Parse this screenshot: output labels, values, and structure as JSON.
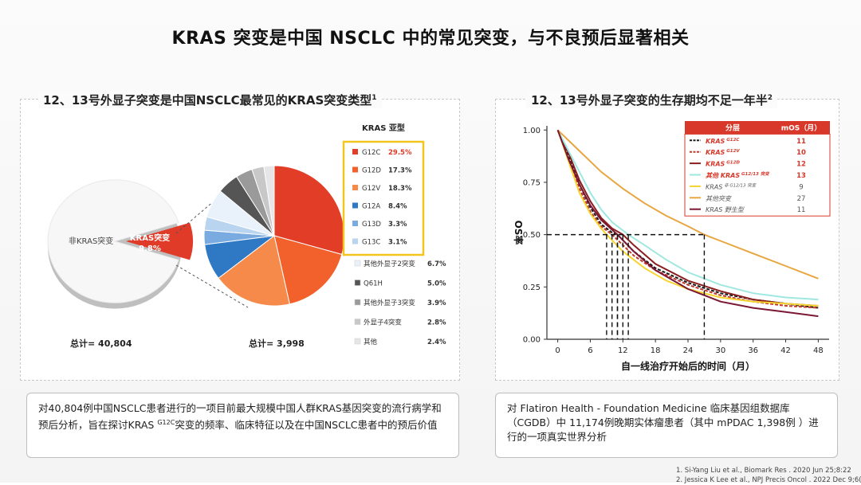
{
  "slide_title": "KRAS 突变是中国 NSCLC 中的常见突变，与不良预后显著相关",
  "left_panel": {
    "title": "12、13号外显子突变是中国NSCLC最常见的KRAS突变类型",
    "title_sup": "1",
    "note_pre": "对40,804例中国NSCLC患者进行的一项目前最大规模中国人群KRAS基因突变的流行病学和预后分析，旨在探讨KRAS ",
    "note_sup": "G12C",
    "note_post": "突变的频率、临床特征以及在中国NSCLC患者中的预后价值"
  },
  "right_panel": {
    "title": "12、13号外显子突变的生存期均不足一年半",
    "title_sup": "2",
    "note": "对 Flatiron Health - Foundation Medicine 临床基因组数据库（CGDB）中 11,174例晚期实体瘤患者（其中 mPDAC 1,398例 ）进行的一项真实世界分析"
  },
  "references": [
    "1.    Si-Yang Liu et al., Biomark Res . 2020 Jun 25;8:22",
    "2.    Jessica K Lee et al., NPJ Precis Oncol . 2022 Dec 9;6(1):91"
  ],
  "chart_data": [
    {
      "type": "pie",
      "categories": [
        "非KRAS突变",
        "KRAS突变"
      ],
      "values": [
        90.2,
        9.8
      ],
      "labels": [
        "非KRAS突变",
        "KRAS突变\n9.8%"
      ],
      "total_label": "总计= 40,804",
      "colors": [
        "#f7f7f7",
        "#e03a28"
      ]
    },
    {
      "type": "pie",
      "title": "KRAS 亚型",
      "total_label": "总计= 3,998",
      "slices": [
        {
          "name": "G12C",
          "value": 29.5,
          "label": "29.5%",
          "color": "#e23d27",
          "group": "highlight"
        },
        {
          "name": "G12D",
          "value": 17.3,
          "label": "17.3%",
          "color": "#f2602b",
          "group": "highlight"
        },
        {
          "name": "G12V",
          "value": 18.3,
          "label": "18.3%",
          "color": "#f58a4b",
          "group": "highlight"
        },
        {
          "name": "G12A",
          "value": 8.4,
          "label": "8.4%",
          "color": "#2e78c4",
          "group": "highlight"
        },
        {
          "name": "G13D",
          "value": 3.3,
          "label": "3.3%",
          "color": "#79abe0",
          "group": "highlight"
        },
        {
          "name": "G13C",
          "value": 3.1,
          "label": "3.1%",
          "color": "#b8d4ef",
          "group": "highlight"
        },
        {
          "name": "其他外显子2突变",
          "value": 6.7,
          "label": "6.7%",
          "color": "#e9f2fb",
          "group": "other"
        },
        {
          "name": "Q61H",
          "value": 5.0,
          "label": "5.0%",
          "color": "#555555",
          "group": "other"
        },
        {
          "name": "其他外显子3突变",
          "value": 3.9,
          "label": "3.9%",
          "color": "#9a9a9a",
          "group": "other"
        },
        {
          "name": "外显子4突变",
          "value": 2.8,
          "label": "2.8%",
          "color": "#c8c8c8",
          "group": "other"
        },
        {
          "name": "其他",
          "value": 2.4,
          "label": "2.4%",
          "color": "#e6e6e6",
          "group": "other"
        }
      ]
    },
    {
      "type": "line",
      "xlabel": "自一线治疗开始后的时间（月）",
      "ylabel": "OS率",
      "xlim": [
        -2,
        50
      ],
      "ylim": [
        0,
        1.02
      ],
      "xticks": [
        0,
        6,
        12,
        18,
        24,
        30,
        36,
        42,
        48
      ],
      "yticks": [
        0.0,
        0.25,
        0.5,
        0.75,
        1.0
      ],
      "ytick_labels": [
        "0.00",
        "0.25",
        "0.50",
        "0.75",
        "1.00"
      ],
      "median_line_y": 0.5,
      "table_header": [
        "分层",
        "mOS（月）"
      ],
      "series": [
        {
          "name": "KRAS",
          "sup": "G12C",
          "mos": "11",
          "color": "#1a1a1a",
          "dash": "4,2",
          "highlight": true,
          "x": [
            0,
            2,
            4,
            6,
            8,
            10,
            11,
            14,
            18,
            24,
            30,
            36,
            42,
            48
          ],
          "y": [
            1.0,
            0.88,
            0.74,
            0.63,
            0.55,
            0.51,
            0.5,
            0.42,
            0.34,
            0.27,
            0.22,
            0.19,
            0.17,
            0.15
          ]
        },
        {
          "name": "KRAS",
          "sup": "G12V",
          "mos": "10",
          "color": "#c0392b",
          "dash": "4,2",
          "highlight": true,
          "x": [
            0,
            2,
            4,
            6,
            8,
            10,
            14,
            18,
            24,
            30,
            36,
            42,
            48
          ],
          "y": [
            1.0,
            0.86,
            0.72,
            0.61,
            0.54,
            0.5,
            0.4,
            0.33,
            0.26,
            0.21,
            0.18,
            0.16,
            0.15
          ]
        },
        {
          "name": "KRAS",
          "sup": "G12D",
          "mos": "12",
          "color": "#8a1f1f",
          "dash": "",
          "highlight": true,
          "x": [
            0,
            2,
            4,
            6,
            8,
            10,
            12,
            14,
            18,
            24,
            30,
            36,
            42,
            48
          ],
          "y": [
            1.0,
            0.89,
            0.76,
            0.66,
            0.58,
            0.53,
            0.5,
            0.45,
            0.36,
            0.28,
            0.23,
            0.19,
            0.17,
            0.16
          ]
        },
        {
          "name": "其他 KRAS",
          "sup": "G12/13 突变",
          "mos": "13",
          "color": "#9ee8e0",
          "dash": "",
          "highlight": true,
          "x": [
            0,
            2,
            4,
            6,
            8,
            10,
            13,
            16,
            20,
            24,
            30,
            36,
            42,
            48
          ],
          "y": [
            1.0,
            0.9,
            0.8,
            0.7,
            0.62,
            0.56,
            0.5,
            0.45,
            0.38,
            0.32,
            0.26,
            0.22,
            0.2,
            0.19
          ]
        },
        {
          "name": "KRAS",
          "sup": "非 G12/13 突变",
          "mos": "9",
          "color": "#f5d430",
          "dash": "",
          "highlight": false,
          "x": [
            0,
            2,
            4,
            6,
            8,
            9,
            12,
            16,
            20,
            24,
            30,
            36,
            42,
            48
          ],
          "y": [
            1.0,
            0.85,
            0.7,
            0.6,
            0.53,
            0.5,
            0.42,
            0.34,
            0.28,
            0.24,
            0.2,
            0.18,
            0.17,
            0.16
          ]
        },
        {
          "name": "其他突变",
          "sup": "",
          "mos": "27",
          "color": "#e8a640",
          "dash": "",
          "highlight": false,
          "x": [
            0,
            2,
            4,
            6,
            8,
            12,
            16,
            20,
            24,
            27,
            30,
            36,
            42,
            48
          ],
          "y": [
            1.0,
            0.95,
            0.9,
            0.85,
            0.8,
            0.72,
            0.65,
            0.59,
            0.54,
            0.5,
            0.47,
            0.41,
            0.35,
            0.29
          ]
        },
        {
          "name": "KRAS 野生型",
          "sup": "",
          "mos": "11",
          "color": "#7b1633",
          "dash": "",
          "highlight": false,
          "x": [
            0,
            2,
            4,
            6,
            8,
            11,
            14,
            18,
            24,
            30,
            36,
            42,
            48
          ],
          "y": [
            1.0,
            0.86,
            0.74,
            0.64,
            0.57,
            0.5,
            0.42,
            0.33,
            0.24,
            0.18,
            0.15,
            0.13,
            0.11
          ]
        }
      ]
    }
  ]
}
